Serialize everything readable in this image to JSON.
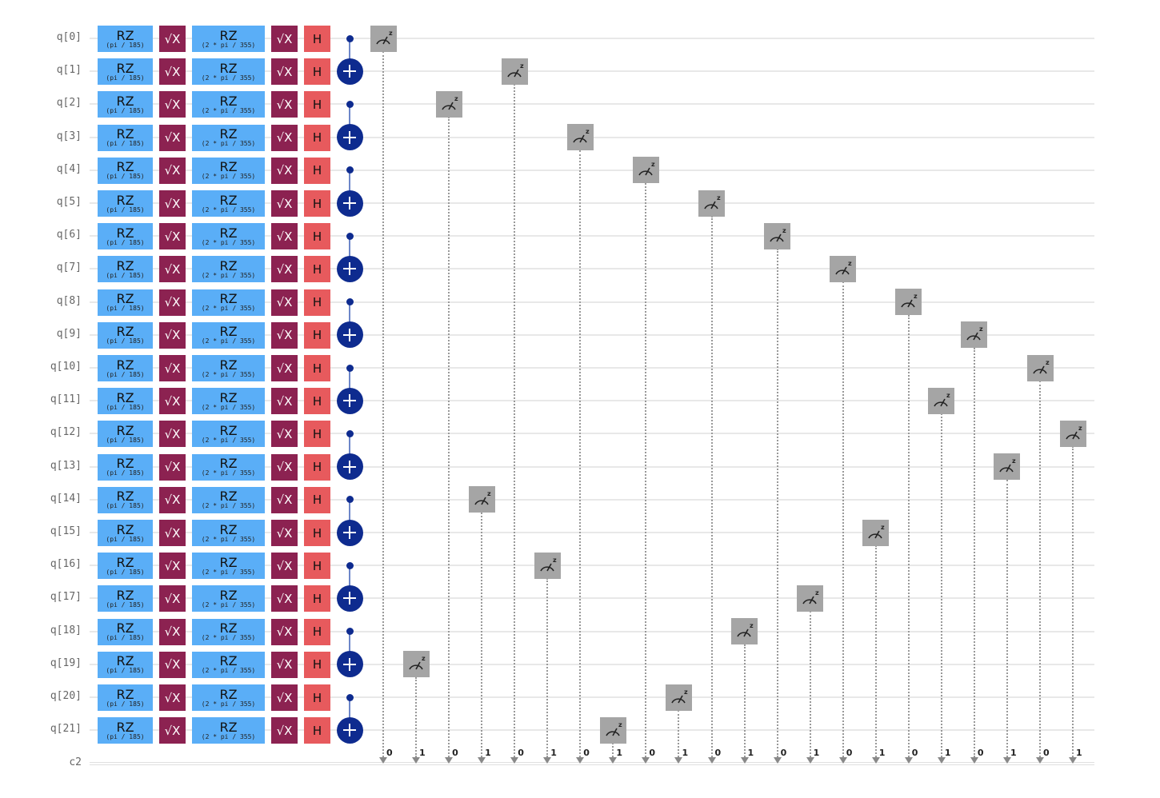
{
  "circuit": {
    "qubits": [
      "q[0]",
      "q[1]",
      "q[2]",
      "q[3]",
      "q[4]",
      "q[5]",
      "q[6]",
      "q[7]",
      "q[8]",
      "q[9]",
      "q[10]",
      "q[11]",
      "q[12]",
      "q[13]",
      "q[14]",
      "q[15]",
      "q[16]",
      "q[17]",
      "q[18]",
      "q[19]",
      "q[20]",
      "q[21]"
    ],
    "classical_register": "c2",
    "gates_per_qubit": [
      {
        "name": "RZ",
        "param": "(pi / 185)"
      },
      {
        "name": "√X"
      },
      {
        "name": "RZ",
        "param": "(2 * pi / 355)"
      },
      {
        "name": "√X"
      },
      {
        "name": "H"
      }
    ],
    "cnot_pairs": [
      [
        0,
        1
      ],
      [
        2,
        3
      ],
      [
        4,
        5
      ],
      [
        6,
        7
      ],
      [
        8,
        9
      ],
      [
        10,
        11
      ],
      [
        12,
        13
      ],
      [
        14,
        15
      ],
      [
        16,
        17
      ],
      [
        18,
        19
      ],
      [
        20,
        21
      ]
    ],
    "measurements": [
      {
        "qubit": 0,
        "bit": "0"
      },
      {
        "qubit": 19,
        "bit": "1"
      },
      {
        "qubit": 2,
        "bit": "0"
      },
      {
        "qubit": 14,
        "bit": "1"
      },
      {
        "qubit": 1,
        "bit": "0"
      },
      {
        "qubit": 16,
        "bit": "1"
      },
      {
        "qubit": 3,
        "bit": "0"
      },
      {
        "qubit": 21,
        "bit": "1"
      },
      {
        "qubit": 4,
        "bit": "0"
      },
      {
        "qubit": 20,
        "bit": "1"
      },
      {
        "qubit": 5,
        "bit": "0"
      },
      {
        "qubit": 18,
        "bit": "1"
      },
      {
        "qubit": 6,
        "bit": "0"
      },
      {
        "qubit": 17,
        "bit": "1"
      },
      {
        "qubit": 7,
        "bit": "0"
      },
      {
        "qubit": 15,
        "bit": "1"
      },
      {
        "qubit": 8,
        "bit": "0"
      },
      {
        "qubit": 11,
        "bit": "1"
      },
      {
        "qubit": 9,
        "bit": "0"
      },
      {
        "qubit": 13,
        "bit": "1"
      },
      {
        "qubit": 10,
        "bit": "0"
      },
      {
        "qubit": 12,
        "bit": "1"
      }
    ],
    "measure_basis_label": "z",
    "colors": {
      "rz": "#5aaef7",
      "sx": "#8c2251",
      "h": "#e75a5d",
      "cnot": "#0e2b8f",
      "measure": "#a5a5a5"
    }
  }
}
